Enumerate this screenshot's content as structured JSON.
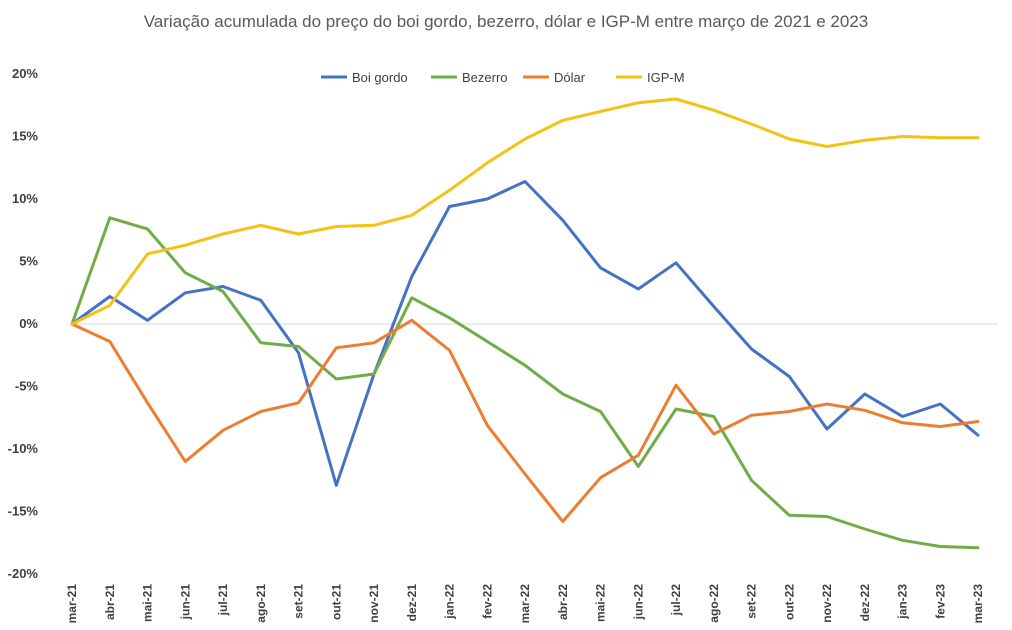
{
  "chart_data": {
    "type": "line",
    "title": "Variação acumulada do preço do boi gordo, bezerro, dólar e IGP-M entre março de 2021 e 2023",
    "xlabel": "",
    "ylabel": "",
    "ylim": [
      -20,
      20
    ],
    "yticks": [
      20,
      15,
      10,
      5,
      0,
      -5,
      -10,
      -15,
      -20
    ],
    "ytick_labels": [
      "20%",
      "15%",
      "10%",
      "5%",
      "0%",
      "-5%",
      "-10%",
      "-15%",
      "-20%"
    ],
    "categories": [
      "mar-21",
      "abr-21",
      "mai-21",
      "jun-21",
      "jul-21",
      "ago-21",
      "set-21",
      "out-21",
      "nov-21",
      "dez-21",
      "jan-22",
      "fev-22",
      "mar-22",
      "abr-22",
      "mai-22",
      "jun-22",
      "jul-22",
      "ago-22",
      "set-22",
      "out-22",
      "nov-22",
      "dez-22",
      "jan-23",
      "fev-23",
      "mar-23"
    ],
    "legend_position": "top-center",
    "grid": false,
    "series": [
      {
        "name": "Boi gordo",
        "color": "#4472C4",
        "values": [
          0,
          2.2,
          0.3,
          2.5,
          3.0,
          1.9,
          -2.3,
          -12.9,
          -4.0,
          3.8,
          9.4,
          10.0,
          11.4,
          8.3,
          4.5,
          2.8,
          4.9,
          1.4,
          -2.0,
          -4.2,
          -8.4,
          -5.6,
          -7.4,
          -6.4,
          -8.9
        ]
      },
      {
        "name": "Bezerro",
        "color": "#70AD47",
        "values": [
          0,
          8.5,
          7.6,
          4.1,
          2.6,
          -1.5,
          -1.8,
          -4.4,
          -4.0,
          2.1,
          0.5,
          -1.4,
          -3.3,
          -5.6,
          -7.0,
          -11.4,
          -6.8,
          -7.4,
          -12.5,
          -15.3,
          -15.4,
          -16.4,
          -17.3,
          -17.8,
          -17.9
        ]
      },
      {
        "name": "Dólar",
        "color": "#ED7D31",
        "values": [
          0,
          -1.4,
          -6.3,
          -11.0,
          -8.5,
          -7.0,
          -6.3,
          -1.9,
          -1.5,
          0.3,
          -2.1,
          -8.1,
          -12.0,
          -15.8,
          -12.3,
          -10.5,
          -4.9,
          -8.8,
          -7.3,
          -7.0,
          -6.4,
          -6.9,
          -7.9,
          -8.2,
          -7.8
        ]
      },
      {
        "name": "IGP-M",
        "color": "#F2C314",
        "values": [
          0,
          1.5,
          5.6,
          6.3,
          7.2,
          7.9,
          7.2,
          7.8,
          7.9,
          8.7,
          10.7,
          12.9,
          14.8,
          16.3,
          17.0,
          17.7,
          18.0,
          17.1,
          16.0,
          14.8,
          14.2,
          14.7,
          15.0,
          14.9,
          14.9
        ]
      }
    ]
  }
}
